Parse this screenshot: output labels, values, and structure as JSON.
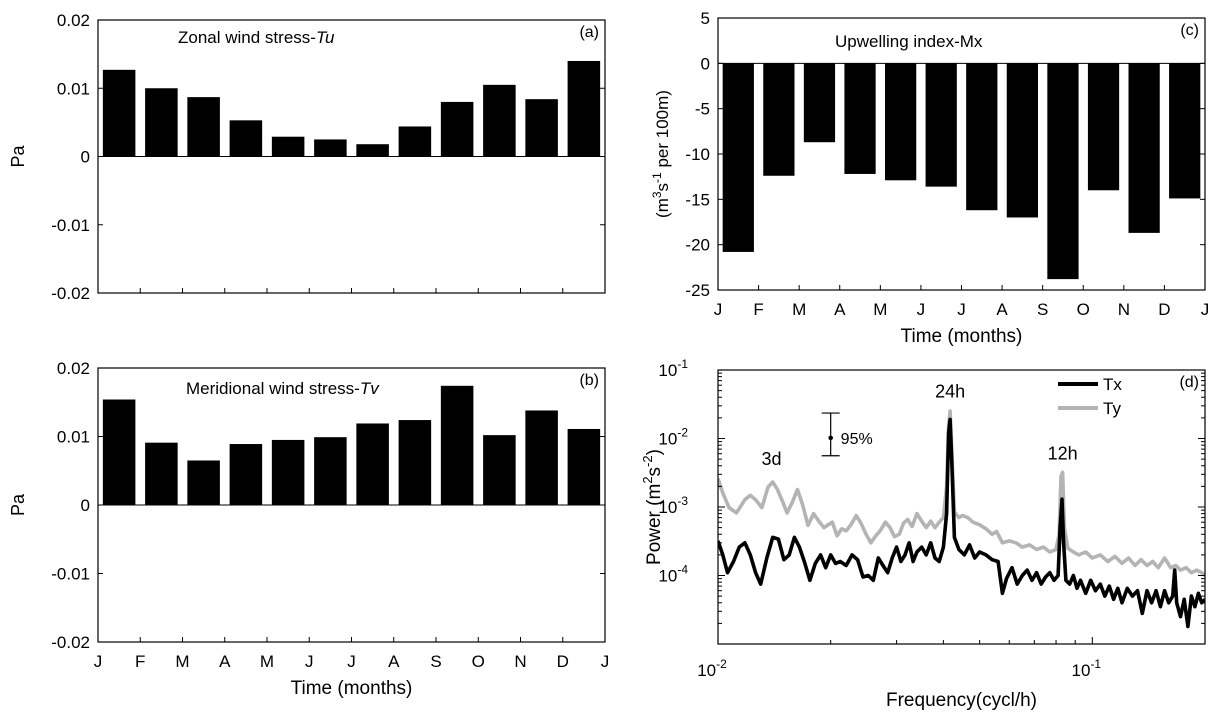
{
  "chart_data": [
    {
      "id": "a",
      "type": "bar",
      "panel_tag": "(a)",
      "title": "Zonal wind stress-",
      "title_italic": "Tu",
      "ylabel": "Pa",
      "xlabel": "",
      "ylim": [
        -0.02,
        0.02
      ],
      "yticks": [
        -0.02,
        -0.01,
        0,
        0.01,
        0.02
      ],
      "ytick_labels": [
        "-0.02",
        "-0.01",
        "0",
        "0.01",
        "0.02"
      ],
      "xticks": [],
      "categories": [
        "J",
        "F",
        "M",
        "A",
        "M",
        "J",
        "J",
        "A",
        "S",
        "O",
        "N",
        "D"
      ],
      "values": [
        0.0127,
        0.01,
        0.0087,
        0.0053,
        0.0029,
        0.0025,
        0.0018,
        0.0044,
        0.008,
        0.0105,
        0.0084,
        0.014
      ],
      "color": "#000000"
    },
    {
      "id": "b",
      "type": "bar",
      "panel_tag": "(b)",
      "title": "Meridional wind stress-",
      "title_italic": "Tv",
      "ylabel": "Pa",
      "xlabel": "Time (months)",
      "ylim": [
        -0.02,
        0.02
      ],
      "yticks": [
        -0.02,
        -0.01,
        0,
        0.01,
        0.02
      ],
      "ytick_labels": [
        "-0.02",
        "-0.01",
        "0",
        "0.01",
        "0.02"
      ],
      "xticks": [
        "J",
        "F",
        "M",
        "A",
        "M",
        "J",
        "J",
        "A",
        "S",
        "O",
        "N",
        "D",
        "J"
      ],
      "categories": [
        "J",
        "F",
        "M",
        "A",
        "M",
        "J",
        "J",
        "A",
        "S",
        "O",
        "N",
        "D"
      ],
      "values": [
        0.0154,
        0.0091,
        0.0065,
        0.0089,
        0.0095,
        0.0099,
        0.0119,
        0.0124,
        0.0174,
        0.0102,
        0.0138,
        0.0111
      ],
      "color": "#000000"
    },
    {
      "id": "c",
      "type": "bar",
      "panel_tag": "(c)",
      "title": "Upwelling index-Mx",
      "ylabel_parts": [
        "(m",
        "3",
        "s",
        "-1",
        " per 100m)"
      ],
      "xlabel": "Time (months)",
      "ylim": [
        -25,
        5
      ],
      "yticks": [
        -25,
        -20,
        -15,
        -10,
        -5,
        0,
        5
      ],
      "ytick_labels": [
        "-25",
        "-20",
        "-15",
        "-10",
        "-5",
        "0",
        "5"
      ],
      "xticks": [
        "J",
        "F",
        "M",
        "A",
        "M",
        "J",
        "J",
        "A",
        "S",
        "O",
        "N",
        "D",
        "J"
      ],
      "categories": [
        "J",
        "F",
        "M",
        "A",
        "M",
        "J",
        "J",
        "A",
        "S",
        "O",
        "N",
        "D"
      ],
      "values": [
        -20.8,
        -12.4,
        -8.7,
        -12.2,
        -12.9,
        -13.6,
        -16.2,
        -17.0,
        -23.8,
        -14.0,
        -18.7,
        -14.9
      ],
      "color": "#000000"
    },
    {
      "id": "d",
      "type": "line",
      "panel_tag": "(d)",
      "xlabel": "Frequency(cycl/h)",
      "ylabel_parts": [
        "Power  (m",
        "2",
        "s",
        "-2",
        ")"
      ],
      "xscale": "log",
      "yscale": "log",
      "xlim": [
        0.01,
        0.2
      ],
      "ylim": [
        1e-05,
        0.1
      ],
      "xticks": [
        0.01,
        0.1
      ],
      "xtick_labels": [
        [
          "10",
          "-2"
        ],
        [
          "10",
          "-1"
        ]
      ],
      "yticks": [
        0.0001,
        0.001,
        0.01,
        0.1
      ],
      "ytick_labels": [
        [
          "10",
          "-4"
        ],
        [
          "10",
          "-3"
        ],
        [
          "10",
          "-2"
        ],
        [
          "10",
          "-1"
        ]
      ],
      "legend_position": "top-right",
      "annotations": [
        {
          "text": "24h",
          "x": 0.0417,
          "y": 0.04
        },
        {
          "text": "12h",
          "x": 0.0833,
          "y": 0.0049
        },
        {
          "text": "3d",
          "x": 0.0139,
          "y": 0.0041
        }
      ],
      "confidence_bar": {
        "label": "95%",
        "x": 0.02,
        "center": 0.0102,
        "low": 0.0056,
        "high": 0.0235
      },
      "series": [
        {
          "name": "Ty",
          "color": "#b4b4b4",
          "points": [
            [
              0.01,
              0.0026
            ],
            [
              0.0103,
              0.0016
            ],
            [
              0.0107,
              0.00098
            ],
            [
              0.0112,
              0.00082
            ],
            [
              0.0118,
              0.00128
            ],
            [
              0.0122,
              0.00148
            ],
            [
              0.0126,
              0.00128
            ],
            [
              0.0131,
              0.00098
            ],
            [
              0.0136,
              0.00195
            ],
            [
              0.014,
              0.00232
            ],
            [
              0.0144,
              0.00182
            ],
            [
              0.0149,
              0.00118
            ],
            [
              0.0153,
              0.00082
            ],
            [
              0.0158,
              0.00118
            ],
            [
              0.0163,
              0.0018
            ],
            [
              0.0168,
              0.00112
            ],
            [
              0.0174,
              0.00054
            ],
            [
              0.018,
              0.0008
            ],
            [
              0.0186,
              0.00062
            ],
            [
              0.0192,
              0.0005
            ],
            [
              0.0197,
              0.00055
            ],
            [
              0.0202,
              0.0006
            ],
            [
              0.0208,
              0.00038
            ],
            [
              0.0214,
              0.00048
            ],
            [
              0.022,
              0.00045
            ],
            [
              0.0227,
              0.00056
            ],
            [
              0.0234,
              0.00075
            ],
            [
              0.0241,
              0.00058
            ],
            [
              0.0248,
              0.00041
            ],
            [
              0.0256,
              0.0003
            ],
            [
              0.0264,
              0.00038
            ],
            [
              0.0272,
              0.00046
            ],
            [
              0.028,
              0.0006
            ],
            [
              0.0288,
              0.0005
            ],
            [
              0.0296,
              0.00037
            ],
            [
              0.0305,
              0.0004
            ],
            [
              0.0313,
              0.00058
            ],
            [
              0.0321,
              0.00066
            ],
            [
              0.033,
              0.00052
            ],
            [
              0.034,
              0.0008
            ],
            [
              0.035,
              0.00062
            ],
            [
              0.036,
              0.0005
            ],
            [
              0.037,
              0.00062
            ],
            [
              0.038,
              0.0005
            ],
            [
              0.039,
              0.0006
            ],
            [
              0.04,
              0.0007
            ],
            [
              0.0408,
              0.002
            ],
            [
              0.0413,
              0.015
            ],
            [
              0.0417,
              0.025
            ],
            [
              0.0421,
              0.007
            ],
            [
              0.0428,
              0.00085
            ],
            [
              0.044,
              0.0007
            ],
            [
              0.045,
              0.00075
            ],
            [
              0.0465,
              0.0007
            ],
            [
              0.048,
              0.0006
            ],
            [
              0.05,
              0.00055
            ],
            [
              0.052,
              0.00048
            ],
            [
              0.054,
              0.0004
            ],
            [
              0.0555,
              0.00044
            ],
            [
              0.0575,
              0.0003
            ],
            [
              0.06,
              0.00032
            ],
            [
              0.0625,
              0.0003
            ],
            [
              0.065,
              0.00026
            ],
            [
              0.068,
              0.00028
            ],
            [
              0.071,
              0.00024
            ],
            [
              0.074,
              0.00026
            ],
            [
              0.077,
              0.00022
            ],
            [
              0.08,
              0.00024
            ],
            [
              0.0815,
              0.0004
            ],
            [
              0.0825,
              0.0028
            ],
            [
              0.0833,
              0.0032
            ],
            [
              0.0842,
              0.0005
            ],
            [
              0.086,
              0.00025
            ],
            [
              0.089,
              0.00022
            ],
            [
              0.092,
              0.0002
            ],
            [
              0.096,
              0.00022
            ],
            [
              0.1,
              0.00018
            ],
            [
              0.105,
              0.0002
            ],
            [
              0.11,
              0.00016
            ],
            [
              0.115,
              0.00019
            ],
            [
              0.12,
              0.00015
            ],
            [
              0.125,
              0.00018
            ],
            [
              0.13,
              0.00014
            ],
            [
              0.135,
              0.00017
            ],
            [
              0.14,
              0.00014
            ],
            [
              0.145,
              0.00016
            ],
            [
              0.15,
              0.00013
            ],
            [
              0.156,
              0.00018
            ],
            [
              0.162,
              0.00013
            ],
            [
              0.167,
              0.00014
            ],
            [
              0.172,
              0.00012
            ],
            [
              0.178,
              0.00013
            ],
            [
              0.184,
              0.00011
            ],
            [
              0.19,
              0.00012
            ],
            [
              0.196,
              0.00011
            ],
            [
              0.2,
              0.0001
            ]
          ]
        },
        {
          "name": "Tx",
          "color": "#000000",
          "points": [
            [
              0.01,
              0.00032
            ],
            [
              0.0103,
              0.0002
            ],
            [
              0.0106,
              0.00011
            ],
            [
              0.011,
              0.00016
            ],
            [
              0.0114,
              0.00026
            ],
            [
              0.0118,
              0.0003
            ],
            [
              0.0122,
              0.0002
            ],
            [
              0.0126,
              0.00011
            ],
            [
              0.013,
              7.5e-05
            ],
            [
              0.0135,
              0.00018
            ],
            [
              0.014,
              0.00036
            ],
            [
              0.0145,
              0.00034
            ],
            [
              0.015,
              0.00017
            ],
            [
              0.0155,
              0.0002
            ],
            [
              0.016,
              0.00036
            ],
            [
              0.0165,
              0.00026
            ],
            [
              0.017,
              0.00016
            ],
            [
              0.0176,
              8.5e-05
            ],
            [
              0.0182,
              0.00015
            ],
            [
              0.0188,
              0.0002
            ],
            [
              0.0194,
              0.00013
            ],
            [
              0.02,
              0.0002
            ],
            [
              0.0206,
              0.00015
            ],
            [
              0.0212,
              0.00016
            ],
            [
              0.022,
              0.00014
            ],
            [
              0.0228,
              0.0002
            ],
            [
              0.0236,
              0.00017
            ],
            [
              0.0244,
              9.5e-05
            ],
            [
              0.0252,
              0.0001
            ],
            [
              0.026,
              8.5e-05
            ],
            [
              0.0268,
              0.00018
            ],
            [
              0.0276,
              0.00014
            ],
            [
              0.0284,
              0.00011
            ],
            [
              0.0292,
              0.00018
            ],
            [
              0.03,
              0.00026
            ],
            [
              0.0308,
              0.00016
            ],
            [
              0.0316,
              0.0002
            ],
            [
              0.0324,
              0.0003
            ],
            [
              0.0332,
              0.00016
            ],
            [
              0.034,
              0.00022
            ],
            [
              0.035,
              0.00026
            ],
            [
              0.036,
              0.0002
            ],
            [
              0.037,
              0.0003
            ],
            [
              0.038,
              0.00018
            ],
            [
              0.039,
              0.00016
            ],
            [
              0.04,
              0.00026
            ],
            [
              0.0408,
              0.0008
            ],
            [
              0.0413,
              0.012
            ],
            [
              0.0417,
              0.019
            ],
            [
              0.0421,
              0.005
            ],
            [
              0.0428,
              0.00036
            ],
            [
              0.044,
              0.00024
            ],
            [
              0.0455,
              0.0002
            ],
            [
              0.047,
              0.00028
            ],
            [
              0.0485,
              0.00018
            ],
            [
              0.05,
              0.00022
            ],
            [
              0.052,
              0.0002
            ],
            [
              0.054,
              0.00017
            ],
            [
              0.056,
              0.00016
            ],
            [
              0.0575,
              5.5e-05
            ],
            [
              0.059,
              9e-05
            ],
            [
              0.061,
              0.00013
            ],
            [
              0.063,
              7.5e-05
            ],
            [
              0.065,
              0.0001
            ],
            [
              0.067,
              0.00012
            ],
            [
              0.069,
              8.5e-05
            ],
            [
              0.071,
              0.00011
            ],
            [
              0.073,
              7.5e-05
            ],
            [
              0.075,
              9.5e-05
            ],
            [
              0.077,
              0.00011
            ],
            [
              0.079,
              8.5e-05
            ],
            [
              0.081,
              0.0001
            ],
            [
              0.082,
              0.0005
            ],
            [
              0.083,
              0.0013
            ],
            [
              0.0838,
              0.0003
            ],
            [
              0.085,
              8.5e-05
            ],
            [
              0.087,
              7.5e-05
            ],
            [
              0.089,
              0.0001
            ],
            [
              0.091,
              6.5e-05
            ],
            [
              0.093,
              8.5e-05
            ],
            [
              0.096,
              5.5e-05
            ],
            [
              0.099,
              8.5e-05
            ],
            [
              0.102,
              6e-05
            ],
            [
              0.105,
              7.5e-05
            ],
            [
              0.108,
              5e-05
            ],
            [
              0.111,
              7e-05
            ],
            [
              0.114,
              4.5e-05
            ],
            [
              0.117,
              6.5e-05
            ],
            [
              0.12,
              4e-05
            ],
            [
              0.124,
              6.5e-05
            ],
            [
              0.128,
              5e-05
            ],
            [
              0.132,
              6e-05
            ],
            [
              0.136,
              2.8e-05
            ],
            [
              0.14,
              6e-05
            ],
            [
              0.144,
              4e-05
            ],
            [
              0.148,
              6e-05
            ],
            [
              0.152,
              3.5e-05
            ],
            [
              0.156,
              6e-05
            ],
            [
              0.16,
              4e-05
            ],
            [
              0.164,
              5e-05
            ],
            [
              0.166,
              0.00012
            ],
            [
              0.168,
              4e-05
            ],
            [
              0.172,
              2.5e-05
            ],
            [
              0.176,
              4.5e-05
            ],
            [
              0.18,
              1.8e-05
            ],
            [
              0.184,
              5e-05
            ],
            [
              0.188,
              3.5e-05
            ],
            [
              0.192,
              5.5e-05
            ],
            [
              0.196,
              4e-05
            ],
            [
              0.2,
              4.5e-05
            ]
          ]
        }
      ]
    }
  ]
}
